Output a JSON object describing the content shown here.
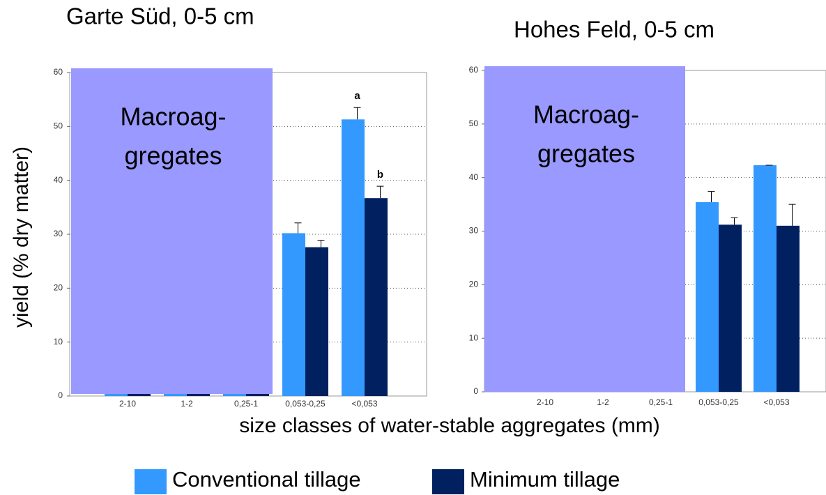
{
  "chart_data": [
    {
      "type": "bar",
      "title": "Garte Süd, 0-5 cm",
      "categories": [
        "2-10",
        "1-2",
        "0,25-1",
        "0,053-0,25",
        "<0,053"
      ],
      "series": [
        {
          "name": "Conventional tillage",
          "color": "#3399ff",
          "values": [
            1,
            0.5,
            1,
            30.2,
            51.3
          ],
          "errors": [
            null,
            null,
            null,
            1.9,
            2.2
          ]
        },
        {
          "name": "Minimum tillage",
          "color": "#002060",
          "values": [
            1,
            1,
            1,
            27.6,
            36.7
          ],
          "errors": [
            null,
            null,
            null,
            1.3,
            2.2
          ]
        }
      ],
      "annotations": [
        "a",
        "b"
      ],
      "ylim": [
        0,
        60
      ],
      "yticks": [
        0,
        10,
        20,
        30,
        40,
        50,
        60
      ],
      "grid": true
    },
    {
      "type": "bar",
      "title": "Hohes Feld, 0-5 cm",
      "categories": [
        "2-10",
        "1-2",
        "0,25-1",
        "0,053-0,25",
        "<0,053"
      ],
      "series": [
        {
          "color": "#3399ff",
          "values": [
            1,
            1,
            1,
            35.4,
            42.3
          ],
          "errors": [
            null,
            null,
            null,
            2.0,
            0
          ]
        },
        {
          "color": "#002060",
          "values": [
            1,
            1,
            1,
            31.2,
            31.0
          ],
          "errors": [
            null,
            null,
            null,
            1.3,
            4.0
          ]
        }
      ],
      "ylim": [
        0,
        60
      ],
      "yticks": [
        0,
        10,
        20,
        30,
        40,
        50,
        60
      ],
      "grid": true
    }
  ],
  "ylabel": "yield (% dry matter)",
  "xlabel": "size classes of water-stable aggregates (mm)",
  "overlay_text": [
    "Macroag-",
    "gregates"
  ]
}
